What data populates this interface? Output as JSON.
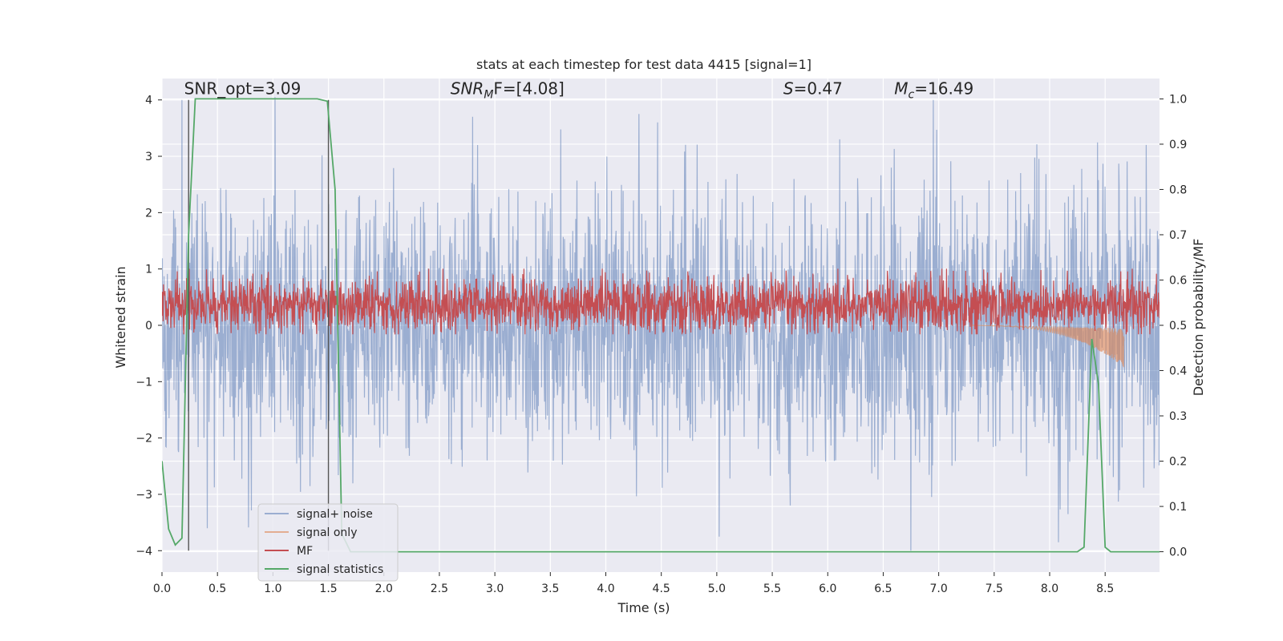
{
  "chart_data": {
    "type": "line",
    "title": "stats at each timestep for test data 4415 [signal=1]",
    "xlabel": "Time (s)",
    "ylabel_left": "Whitened strain",
    "ylabel_right": "Detection probability/MF",
    "xlim": [
      0.0,
      8.99
    ],
    "ylim_left": [
      -4.38,
      4.38
    ],
    "ylim_right": [
      -0.045,
      1.045
    ],
    "x_ticks": [
      "0.0",
      "0.5",
      "1.0",
      "1.5",
      "2.0",
      "2.5",
      "3.0",
      "3.5",
      "4.0",
      "4.5",
      "5.0",
      "5.5",
      "6.0",
      "6.5",
      "7.0",
      "7.5",
      "8.0",
      "8.5"
    ],
    "y_ticks_left": [
      "-4",
      "-3",
      "-2",
      "-1",
      "0",
      "1",
      "2",
      "3",
      "4"
    ],
    "y_ticks_right": [
      "0.0",
      "0.1",
      "0.2",
      "0.3",
      "0.4",
      "0.5",
      "0.6",
      "0.7",
      "0.8",
      "0.9",
      "1.0"
    ],
    "grid": true,
    "background": "#eaeaf2",
    "legend_position": "lower-left",
    "annotations": [
      {
        "text": "SNR_opt=3.09",
        "x": 0.2,
        "y": 4.1
      },
      {
        "text": "SNR",
        "sub": "M",
        "tail": "F=[4.08]",
        "italic_head": true,
        "x": 2.6,
        "y": 4.1
      },
      {
        "text": "S",
        "tail": "=0.47",
        "italic_head": true,
        "x": 5.6,
        "y": 4.1
      },
      {
        "text": "M",
        "sub": "c",
        "tail": "=16.49",
        "italic_head": true,
        "x": 6.6,
        "y": 4.1
      }
    ],
    "vlines": [
      0.24,
      1.5
    ],
    "series": [
      {
        "name": "signal+ noise",
        "color": "#4c72b0",
        "axis": "left",
        "kind": "noise",
        "amplitude_sigma": 1.0,
        "notable_peaks": [
          {
            "x": 0.18,
            "y": 4.0
          },
          {
            "x": 1.02,
            "y": 4.05
          },
          {
            "x": 2.8,
            "y": 3.7
          },
          {
            "x": 4.3,
            "y": 3.75
          },
          {
            "x": 6.95,
            "y": 4.0
          },
          {
            "x": 5.02,
            "y": -3.75
          },
          {
            "x": 6.75,
            "y": -4.0
          },
          {
            "x": 8.08,
            "y": -3.85
          }
        ]
      },
      {
        "name": "signal only",
        "color": "#dd8452",
        "axis": "left",
        "kind": "chirp",
        "x_start": 7.3,
        "x_end": 8.67,
        "y_end_low": -0.7
      },
      {
        "name": "MF",
        "color": "#c44e52",
        "axis": "right",
        "kind": "mf",
        "center": 0.545,
        "spread": 0.03
      },
      {
        "name": "signal statistics",
        "color": "#55a868",
        "axis": "right",
        "x": [
          0.0,
          0.06,
          0.12,
          0.18,
          0.24,
          0.3,
          0.36,
          0.5,
          1.0,
          1.4,
          1.49,
          1.56,
          1.62,
          1.7,
          2.0,
          3.0,
          4.0,
          5.0,
          6.0,
          7.0,
          8.0,
          8.25,
          8.31,
          8.38,
          8.44,
          8.5,
          8.55,
          8.6,
          8.7,
          8.99
        ],
        "y": [
          0.2,
          0.05,
          0.015,
          0.03,
          0.7,
          1.0,
          1.0,
          1.0,
          1.0,
          1.0,
          0.995,
          0.8,
          0.04,
          0.0,
          0.0,
          0.0,
          0.0,
          0.0,
          0.0,
          0.0,
          0.0,
          0.0,
          0.01,
          0.47,
          0.37,
          0.01,
          0.0,
          0.0,
          0.0,
          0.0
        ]
      }
    ]
  }
}
